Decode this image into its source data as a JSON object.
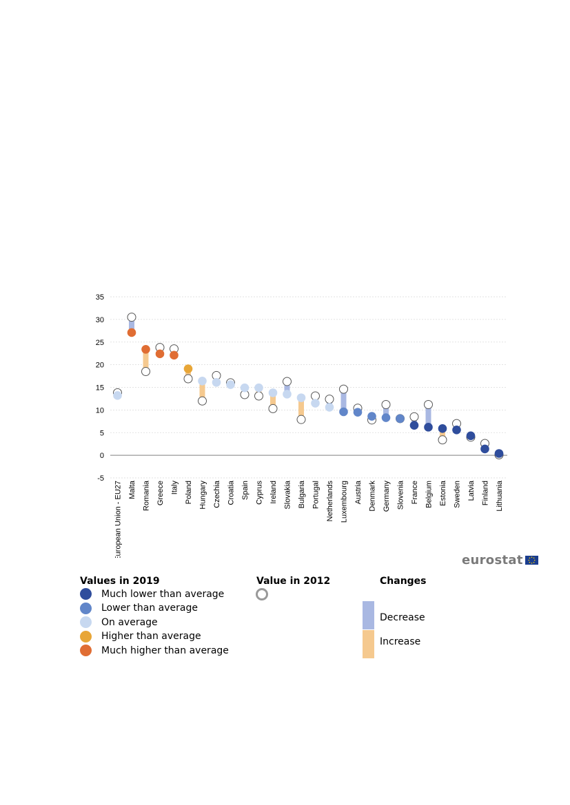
{
  "chart_data": {
    "type": "dot-change",
    "yticks": [
      -5,
      0,
      5,
      10,
      15,
      20,
      25,
      30,
      35
    ],
    "ylim": [
      -5,
      35
    ],
    "categories": [
      "European Union - EU27",
      "Malta",
      "Romania",
      "Greece",
      "Italy",
      "Poland",
      "Hungary",
      "Czechia",
      "Croatia",
      "Spain",
      "Cyprus",
      "Ireland",
      "Slovakia",
      "Bulgaria",
      "Portugal",
      "Netherlands",
      "Luxembourg",
      "Austria",
      "Denmark",
      "Germany",
      "Slovenia",
      "France",
      "Belgium",
      "Estonia",
      "Sweden",
      "Latvia",
      "Finland",
      "Lithuania"
    ],
    "series": [
      {
        "name": "Value in 2019",
        "values": [
          13.2,
          27.1,
          23.4,
          22.4,
          22.1,
          19.1,
          16.4,
          16.1,
          15.6,
          14.9,
          14.9,
          13.8,
          13.5,
          12.7,
          11.5,
          10.6,
          9.6,
          9.5,
          8.6,
          8.3,
          8.1,
          6.6,
          6.2,
          5.9,
          5.6,
          4.3,
          1.4,
          0.4
        ]
      },
      {
        "name": "Value in 2012",
        "values": [
          13.8,
          30.5,
          18.5,
          23.8,
          23.5,
          16.9,
          12.0,
          17.6,
          16.0,
          13.4,
          13.1,
          10.3,
          16.3,
          7.9,
          13.1,
          12.4,
          14.6,
          10.4,
          7.8,
          11.2,
          8.1,
          8.5,
          11.2,
          3.4,
          7.0,
          4.0,
          2.6,
          0.1
        ]
      }
    ],
    "category2019": [
      "average",
      "much-higher",
      "much-higher",
      "much-higher",
      "much-higher",
      "higher",
      "average",
      "average",
      "average",
      "average",
      "average",
      "average",
      "average",
      "average",
      "average",
      "average",
      "lower",
      "lower",
      "lower",
      "lower",
      "lower",
      "much-lower",
      "much-lower",
      "much-lower",
      "much-lower",
      "much-lower",
      "much-lower",
      "much-lower"
    ],
    "colors": {
      "much-lower": "#2f4d9c",
      "lower": "#6186c9",
      "average": "#c7d8f0",
      "higher": "#e8a637",
      "much-higher": "#e06d33",
      "decrease": "#a9b8e2",
      "increase": "#f5c98f",
      "grid": "#d9d9d9",
      "open-dot-border": "#999999"
    }
  },
  "legend": {
    "values_title": "Values in 2019",
    "values_items": [
      {
        "label": "Much lower than average",
        "color": "#2f4d9c"
      },
      {
        "label": "Lower than average",
        "color": "#6186c9"
      },
      {
        "label": "On average",
        "color": "#c7d8f0"
      },
      {
        "label": "Higher than average",
        "color": "#e8a637"
      },
      {
        "label": "Much higher than average",
        "color": "#e06d33"
      }
    ],
    "value2012_title": "Value in 2012",
    "changes_title": "Changes",
    "decrease_label": "Decrease",
    "increase_label": "Increase"
  },
  "branding": {
    "logo_text": "eurostat"
  }
}
